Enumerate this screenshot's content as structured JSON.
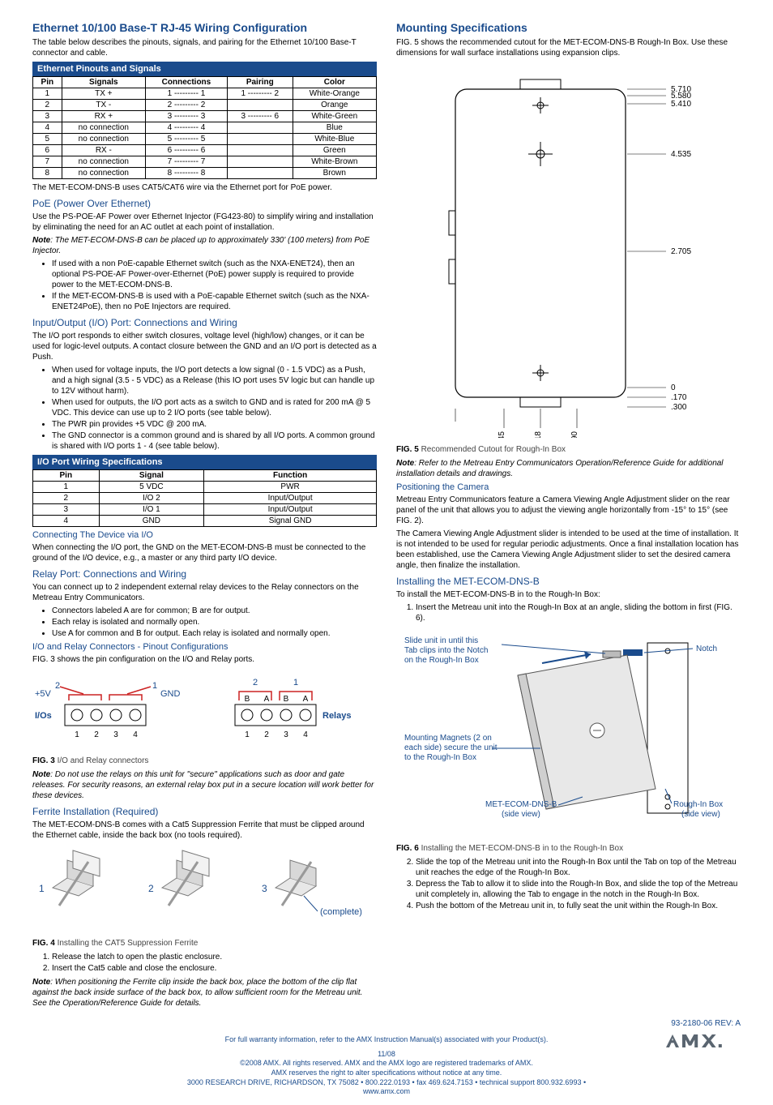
{
  "left": {
    "h_ethernet": "Ethernet 10/100 Base-T RJ-45 Wiring Configuration",
    "p_ethernet": "The table below describes the pinouts, signals, and pairing for the Ethernet 10/100 Base-T connector and cable.",
    "table1": {
      "caption": "Ethernet Pinouts and Signals",
      "headers": [
        "Pin",
        "Signals",
        "Connections",
        "Pairing",
        "Color"
      ],
      "rows": [
        [
          "1",
          "TX +",
          "1 --------- 1",
          "1 --------- 2",
          "White-Orange"
        ],
        [
          "2",
          "TX -",
          "2 --------- 2",
          "",
          "Orange"
        ],
        [
          "3",
          "RX +",
          "3 --------- 3",
          "3 --------- 6",
          "White-Green"
        ],
        [
          "4",
          "no connection",
          "4 --------- 4",
          "",
          "Blue"
        ],
        [
          "5",
          "no connection",
          "5 --------- 5",
          "",
          "White-Blue"
        ],
        [
          "6",
          "RX -",
          "6 --------- 6",
          "",
          "Green"
        ],
        [
          "7",
          "no connection",
          "7 --------- 7",
          "",
          "White-Brown"
        ],
        [
          "8",
          "no connection",
          "8 --------- 8",
          "",
          "Brown"
        ]
      ]
    },
    "p_cat5": "The MET-ECOM-DNS-B uses CAT5/CAT6 wire via the Ethernet port for PoE power.",
    "h_poe": "PoE (Power Over Ethernet)",
    "p_poe1": "Use the PS-POE-AF Power over Ethernet Injector (FG423-80) to simplify wiring and installation by eliminating the need for an AC outlet at each point of installation.",
    "note_poe": "Note",
    "note_poe_body": ": The MET-ECOM-DNS-B can be placed up to approximately 330' (100 meters) from PoE Injector.",
    "poe_bullets": [
      "If used with a non PoE-capable Ethernet switch (such as the NXA-ENET24), then an optional PS-POE-AF Power-over-Ethernet (PoE) power supply is required to provide power to the MET-ECOM-DNS-B.",
      "If the MET-ECOM-DNS-B is used with a PoE-capable Ethernet switch (such as the NXA-ENET24PoE), then no PoE Injectors are required."
    ],
    "h_io": "Input/Output (I/O) Port: Connections and Wiring",
    "p_io": "The I/O port responds to either switch closures, voltage level (high/low) changes, or it can be used for logic-level outputs. A contact closure between the GND and an I/O port is detected as a Push.",
    "io_bullets": [
      "When used for voltage inputs, the I/O port detects a low signal (0 - 1.5 VDC) as a Push, and a high signal (3.5 - 5 VDC) as a Release (this IO port uses 5V logic but can handle up to 12V without harm).",
      "When used for outputs, the I/O port acts as a switch to GND and is rated for 200 mA @ 5 VDC. This device can use up to 2 I/O ports (see table below).",
      "The PWR pin provides +5 VDC @ 200 mA.",
      "The GND connector is a common ground and is shared by all I/O ports. A common ground is shared with I/O ports 1 - 4 (see table below)."
    ],
    "table2": {
      "caption": "I/O Port Wiring Specifications",
      "headers": [
        "Pin",
        "Signal",
        "Function"
      ],
      "rows": [
        [
          "1",
          "5 VDC",
          "PWR"
        ],
        [
          "2",
          "I/O 2",
          "Input/Output"
        ],
        [
          "3",
          "I/O 1",
          "Input/Output"
        ],
        [
          "4",
          "GND",
          "Signal GND"
        ]
      ]
    },
    "h_conn_io": "Connecting The Device via I/O",
    "p_conn_io": "When connecting the I/O port, the GND on the MET-ECOM-DNS-B must be connected to the ground of the I/O device, e.g., a master or any third party I/O device.",
    "h_relay": "Relay Port: Connections and Wiring",
    "p_relay": "You can connect up to 2 independent external relay devices to the Relay connectors on the Metreau Entry Communicators.",
    "relay_bullets": [
      "Connectors labeled A are for common; B are for output.",
      "Each relay is isolated and normally open.",
      "Use A for common and B for output. Each relay is isolated and normally open."
    ],
    "h_pinout": "I/O and Relay Connectors - Pinout Configurations",
    "p_fig3": "FIG. 3 shows the pin configuration on the I/O and Relay ports.",
    "io_diagram": {
      "left_top_labels": [
        "2",
        "1"
      ],
      "left_5v": "+5V",
      "left_gnd": "GND",
      "left_ios": "I/Os",
      "left_bottom": [
        "1",
        "2",
        "3",
        "4"
      ],
      "right_top": [
        "2",
        "1"
      ],
      "right_ba": [
        "B",
        "A",
        "B",
        "A"
      ],
      "right_relays": "Relays",
      "right_bottom": [
        "1",
        "2",
        "3",
        "4"
      ],
      "color_blue": "#1a4b8c",
      "color_red": "#cc2222"
    },
    "fig3_cap_b": "FIG. 3",
    "fig3_cap": "  I/O and Relay connectors",
    "note_relay": "Note",
    "note_relay_body": ": Do not use the relays on this unit for \"secure\" applications such as door and gate releases. For security reasons, an external relay box put in a secure location will work better for these devices.",
    "h_ferrite": "Ferrite Installation (Required)",
    "p_ferrite": "The MET-ECOM-DNS-B comes with a Cat5 Suppression Ferrite that must be clipped around the Ethernet cable, inside the back box (no tools required).",
    "ferrite_labels": [
      "1",
      "2",
      "3",
      "(complete)"
    ],
    "fig4_cap_b": "FIG. 4",
    "fig4_cap": "  Installing the CAT5 Suppression Ferrite",
    "ferrite_steps": [
      "Release the latch to open the plastic enclosure.",
      "Insert the Cat5 cable and close the enclosure."
    ],
    "note_ferrite": "Note",
    "note_ferrite_body": ": When positioning the Ferrite clip inside the back box, place the bottom of the clip flat against the back inside surface of the back box, to allow sufficient room for the Metreau unit. See the Operation/Reference Guide for details."
  },
  "right": {
    "h_mount": "Mounting Specifications",
    "p_mount": "FIG. 5 shows the recommended cutout for the MET-ECOM-DNS-B Rough-In Box. Use these dimensions for wall surface installations using expansion clips.",
    "cutout": {
      "dims_right": [
        "5.710",
        "5.580",
        "5.410",
        "4.535",
        "2.705",
        "0",
        ".170",
        ".300"
      ],
      "dims_bottom": [
        "1.845",
        "2.518",
        "3.690"
      ]
    },
    "fig5_cap_b": "FIG. 5",
    "fig5_cap": "  Recommended Cutout for Rough-In Box",
    "note_mount": "Note",
    "note_mount_body": ": Refer to the Metreau Entry Communicators Operation/Reference Guide for additional installation details and drawings.",
    "h_pos": "Positioning the Camera",
    "p_pos1": "Metreau Entry Communicators feature a Camera Viewing Angle Adjustment slider on the rear panel of the unit that allows you to adjust the viewing angle horizontally from -15° to 15° (see FIG. 2).",
    "p_pos2": "The Camera Viewing Angle Adjustment slider is intended to be used at the time of installation. It is not intended to be used for regular periodic adjustments. Once a final installation location has been established, use the Camera Viewing Angle Adjustment slider to set the desired camera angle, then finalize the installation.",
    "h_install": "Installing the MET-ECOM-DNS-B",
    "p_install": "To install the MET-ECOM-DNS-B in to the Rough-In Box:",
    "install_step1": "Insert the Metreau unit into the Rough-In Box at an angle, sliding the bottom in first (FIG. 6).",
    "diag6": {
      "label_slide": "Slide unit in until this Tab clips into the Notch on the Rough-In Box",
      "label_notch": "Notch",
      "label_magnets": "Mounting Magnets (2 on each side) secure the unit to the Rough-In Box",
      "label_met": "MET-ECOM-DNS-B (side view)",
      "label_rib": "Rough-In Box (side view)",
      "color_blue": "#1a4b8c"
    },
    "fig6_cap_b": "FIG. 6",
    "fig6_cap": "  Installing the MET-ECOM-DNS-B in to the Rough-In Box",
    "install_rest": [
      "Slide the top of the Metreau unit into the Rough-In Box until the Tab on top of the Metreau unit reaches the edge of the Rough-In Box.",
      "Depress the Tab to allow it to slide into the Rough-In Box, and slide the top of the Metreau unit completely in, allowing the Tab to engage in the notch in the Rough-In Box.",
      "Push the bottom of the Metreau unit in, to fully seat the unit within the Rough-In Box."
    ]
  },
  "footer": {
    "warranty": "For full warranty information, refer to the AMX Instruction Manual(s) associated with your Product(s).",
    "doc": "93-2180-06    REV: A",
    "date": "11/08",
    "c1": "©2008 AMX. All rights reserved. AMX and the AMX logo are registered trademarks of AMX.",
    "c2": "AMX reserves the right to alter specifications without notice at any time.",
    "c3": "3000 RESEARCH DRIVE, RICHARDSON, TX 75082 • 800.222.0193 • fax 469.624.7153 • technical support 800.932.6993 • www.amx.com"
  }
}
